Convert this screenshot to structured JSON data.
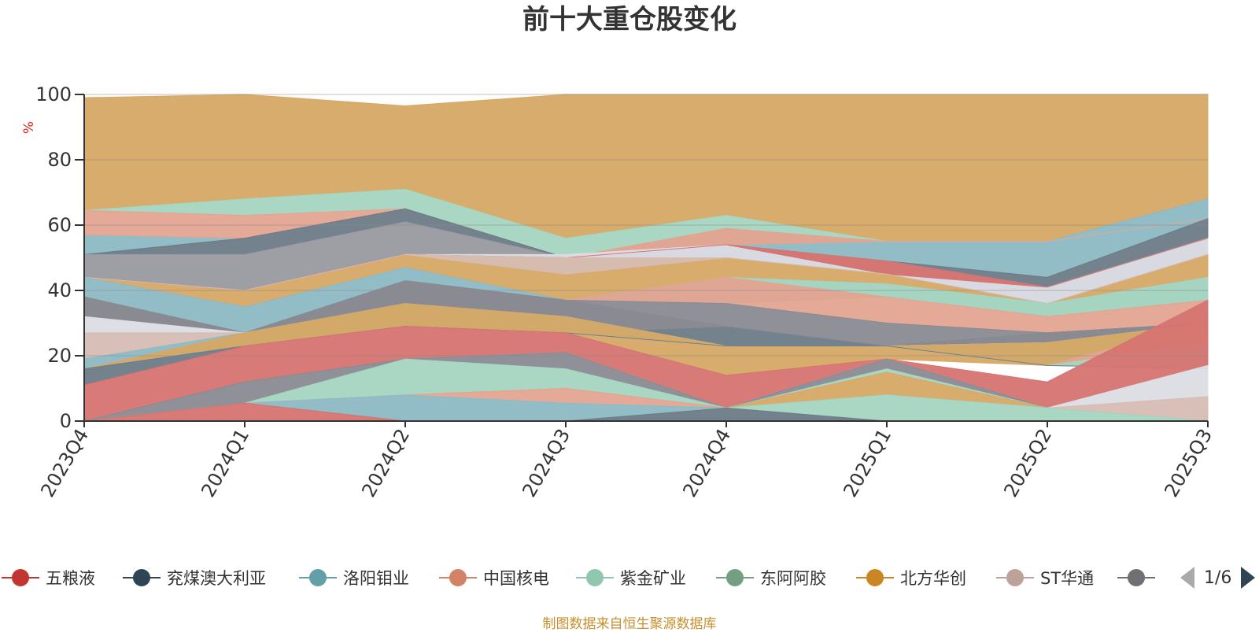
{
  "chart_data": {
    "type": "area",
    "title": "前十大重仓股变化",
    "ylabel": "%",
    "ylim": [
      0,
      100
    ],
    "yticks": [
      0,
      20,
      40,
      60,
      80,
      100
    ],
    "categories": [
      "2023Q4",
      "2024Q1",
      "2024Q2",
      "2024Q3",
      "2024Q4",
      "2025Q1",
      "2025Q2",
      "2025Q3"
    ],
    "grid": true,
    "bands": [
      {
        "color": "#d6a865",
        "upper": [
          99,
          100,
          96.5,
          100,
          100,
          100,
          100,
          100
        ],
        "lower": [
          64.5,
          68,
          71,
          56,
          63,
          55,
          55,
          68
        ]
      },
      {
        "color": "#8db9c3",
        "upper": [
          57,
          56,
          65,
          50,
          59,
          55,
          55,
          68
        ],
        "lower": [
          51,
          56,
          65,
          50,
          54,
          49,
          44,
          62
        ]
      },
      {
        "color": "#a5d5c0",
        "upper": [
          64.5,
          68,
          71,
          56,
          63,
          55,
          55,
          62
        ],
        "lower": [
          64.5,
          63,
          65,
          50,
          59,
          55,
          55,
          62
        ]
      },
      {
        "color": "#e3a491",
        "upper": [
          64.5,
          63,
          65,
          50,
          59,
          55,
          55,
          62
        ],
        "lower": [
          57,
          56,
          65,
          50,
          54,
          55,
          55,
          62
        ]
      },
      {
        "color": "#6c7b87",
        "upper": [
          51,
          56,
          65,
          50,
          54,
          49,
          44,
          62
        ],
        "lower": [
          51,
          51,
          61,
          50,
          54,
          49,
          41,
          56
        ]
      },
      {
        "color": "#999aa0",
        "upper": [
          51,
          51,
          61,
          50,
          54,
          49,
          41,
          56
        ],
        "lower": [
          44,
          40,
          51,
          45,
          50,
          45,
          36,
          51
        ]
      },
      {
        "color": "#dcdde4",
        "upper": [
          44,
          40,
          51,
          51,
          54,
          45,
          41,
          56
        ],
        "lower": [
          44,
          40,
          51,
          50,
          50,
          45,
          36,
          51
        ]
      },
      {
        "color": "#d6a865",
        "upper": [
          44,
          40,
          51,
          50,
          50,
          45,
          36,
          51
        ],
        "lower": [
          44,
          35,
          47,
          37,
          44,
          42,
          36,
          44
        ]
      },
      {
        "color": "#d67471",
        "upper": [
          44,
          40,
          51,
          50,
          54,
          49,
          41,
          56
        ],
        "lower": [
          44,
          40,
          51,
          50,
          54,
          45,
          41,
          56
        ]
      },
      {
        "color": "#d6bcb3",
        "upper": [
          44,
          40,
          51,
          50,
          50,
          45,
          36,
          51
        ],
        "lower": [
          44,
          40,
          51,
          45,
          50,
          45,
          36,
          51
        ]
      },
      {
        "color": "#8db9c3",
        "upper": [
          44,
          35,
          47,
          37,
          44,
          42,
          36,
          44
        ],
        "lower": [
          38,
          27,
          43,
          37,
          36,
          38,
          32,
          37
        ]
      },
      {
        "color": "#a5d5c0",
        "upper": [
          38,
          27,
          43,
          37,
          44,
          42,
          36,
          44
        ],
        "lower": [
          38,
          27,
          43,
          37,
          44,
          38,
          32,
          37
        ]
      },
      {
        "color": "#e3a491",
        "upper": [
          38,
          27,
          43,
          37,
          44,
          38,
          32,
          37
        ],
        "lower": [
          38,
          27,
          43,
          37,
          36,
          30,
          27,
          30
        ]
      },
      {
        "color": "#6c7b87",
        "upper": [
          38,
          27,
          43,
          37,
          29,
          23,
          27,
          30
        ],
        "lower": [
          32,
          27,
          36,
          27,
          23,
          23,
          24,
          30
        ]
      },
      {
        "color": "#8a8a92",
        "upper": [
          38,
          27,
          43,
          37,
          36,
          30,
          27,
          30
        ],
        "lower": [
          32,
          27,
          36,
          27,
          29,
          23,
          24,
          30
        ]
      },
      {
        "color": "#dcdde4",
        "upper": [
          32,
          27,
          36,
          27,
          23,
          23,
          24,
          30
        ],
        "lower": [
          27,
          27,
          36,
          27,
          23,
          23,
          24,
          30
        ]
      },
      {
        "color": "#d6bcb3",
        "upper": [
          27,
          27,
          36,
          27,
          23,
          23,
          24,
          30
        ],
        "lower": [
          19,
          27,
          36,
          27,
          23,
          23,
          24,
          30
        ]
      },
      {
        "color": "#8db9c3",
        "upper": [
          19,
          27,
          36,
          32,
          23,
          23,
          24,
          30
        ],
        "lower": [
          16,
          23,
          29,
          27,
          23,
          23,
          17,
          30
        ]
      },
      {
        "color": "#d6a865",
        "upper": [
          16,
          27,
          36,
          32,
          23,
          23,
          24,
          30
        ],
        "lower": [
          16,
          23,
          29,
          27,
          14,
          19,
          17,
          17
        ]
      },
      {
        "color": "#e3a491",
        "upper": [
          16,
          23,
          29,
          27,
          23,
          23,
          17,
          30
        ],
        "lower": [
          16,
          23,
          29,
          27,
          23,
          23,
          17,
          24
        ]
      },
      {
        "color": "#a5d5c0",
        "upper": [
          16,
          23,
          29,
          27,
          23,
          23,
          17,
          24
        ],
        "lower": [
          16,
          23,
          29,
          27,
          23,
          23,
          17,
          16
        ]
      },
      {
        "color": "#6c7b87",
        "upper": [
          16,
          23,
          29,
          27,
          23,
          23,
          17,
          16
        ],
        "lower": [
          11,
          23,
          29,
          27,
          23,
          23,
          17,
          16
        ]
      },
      {
        "color": "#d67471",
        "upper": [
          11,
          23,
          29,
          27,
          14,
          19,
          12,
          37
        ],
        "lower": [
          0,
          12,
          19,
          21,
          4,
          19,
          4,
          17
        ]
      },
      {
        "color": "#a5d5c0",
        "upper": [
          0,
          5.5,
          19,
          21,
          4,
          19,
          4,
          17
        ],
        "lower": [
          0,
          5.5,
          19,
          21,
          4,
          19,
          4,
          17
        ]
      },
      {
        "color": "#8a8a92",
        "upper": [
          0,
          12,
          19,
          21,
          4,
          19,
          4,
          17
        ],
        "lower": [
          0,
          5.5,
          19,
          16,
          4,
          16,
          4,
          17
        ]
      },
      {
        "color": "#a5d5c0",
        "upper": [
          0,
          5.5,
          19,
          16,
          4,
          16,
          4,
          17
        ],
        "lower": [
          0,
          5.5,
          8,
          10,
          4,
          15,
          4,
          17
        ]
      },
      {
        "color": "#d6a865",
        "upper": [
          0,
          5.5,
          8,
          10,
          4,
          15,
          4,
          17
        ],
        "lower": [
          0,
          5.5,
          8,
          10,
          4,
          8,
          4,
          17
        ]
      },
      {
        "color": "#e3a491",
        "upper": [
          0,
          5.5,
          8,
          10,
          4,
          8,
          4,
          17
        ],
        "lower": [
          0,
          5.5,
          8,
          5.5,
          4,
          8,
          4,
          17
        ]
      },
      {
        "color": "#dcdde4",
        "upper": [
          0,
          5.5,
          8,
          5.5,
          4,
          8,
          4,
          17
        ],
        "lower": [
          0,
          5.5,
          8,
          5.5,
          4,
          8,
          4,
          7.5
        ]
      },
      {
        "color": "#d6bcb3",
        "upper": [
          0,
          5.5,
          8,
          5.5,
          4,
          8,
          4,
          7.5
        ],
        "lower": [
          0,
          5.5,
          8,
          5.5,
          4,
          8,
          4,
          0
        ]
      },
      {
        "color": "#8db9c3",
        "upper": [
          0,
          5.5,
          8,
          5.5,
          4,
          8,
          4,
          0
        ],
        "lower": [
          0,
          5.5,
          0,
          0,
          4,
          8,
          4,
          0
        ]
      },
      {
        "color": "#a5d5c0",
        "upper": [
          0,
          5.5,
          0,
          0,
          4,
          8,
          4,
          0
        ],
        "lower": [
          0,
          5.5,
          0,
          0,
          4,
          0,
          0,
          0
        ]
      },
      {
        "color": "#6c7b87",
        "upper": [
          0,
          5.5,
          0,
          0,
          4,
          0,
          0,
          0
        ],
        "lower": [
          0,
          5.5,
          0,
          0,
          0,
          0,
          0,
          0
        ]
      },
      {
        "color": "#d67471",
        "upper": [
          0,
          5.5,
          0,
          0,
          0,
          0,
          0,
          0
        ],
        "lower": [
          0,
          0,
          0,
          0,
          0,
          0,
          0,
          0
        ]
      }
    ]
  },
  "legend": {
    "items": [
      {
        "name": "五粮液",
        "color": "#c23531"
      },
      {
        "name": "兖煤澳大利亚",
        "color": "#2f4554"
      },
      {
        "name": "洛阳钼业",
        "color": "#61a0a8"
      },
      {
        "name": "中国核电",
        "color": "#d48265"
      },
      {
        "name": "紫金矿业",
        "color": "#91c7ae"
      },
      {
        "name": "东阿阿胶",
        "color": "#749f83"
      },
      {
        "name": "北方华创",
        "color": "#ca8622"
      },
      {
        "name": "ST华通",
        "color": "#bda29a"
      },
      {
        "name": "",
        "color": "#6e7074"
      }
    ],
    "page": "1/6"
  },
  "source_note": "制图数据来自恒生聚源数据库"
}
